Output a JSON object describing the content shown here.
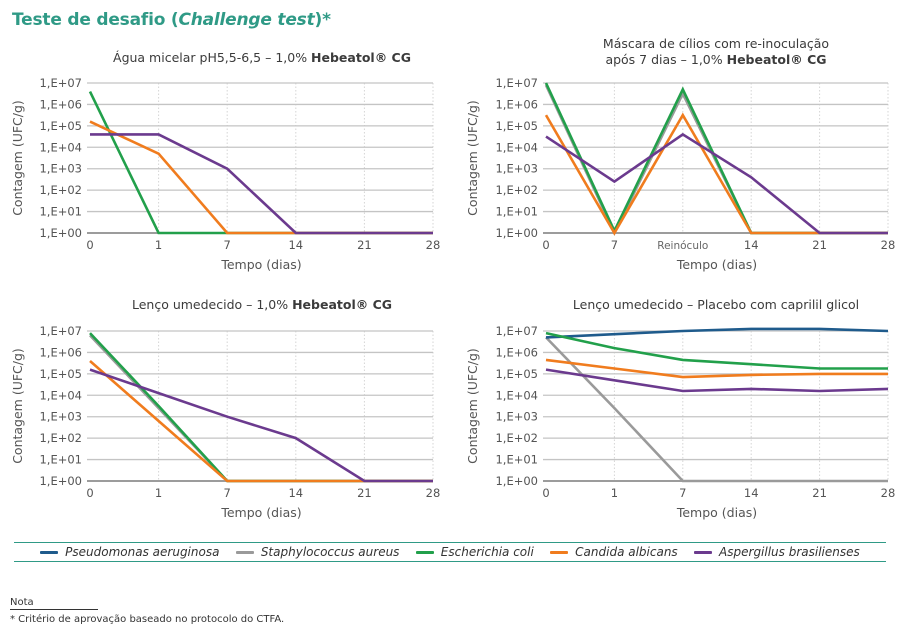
{
  "page": {
    "title_prefix": "Teste de desafio (",
    "title_italic": "Challenge test",
    "title_suffix": ")*"
  },
  "legend": [
    {
      "name": "Pseudomonas aeruginosa",
      "color": "#1f5b8c"
    },
    {
      "name": "Staphylococcus aureus",
      "color": "#9a9a9a"
    },
    {
      "name": "Escherichia coli",
      "color": "#22a04b"
    },
    {
      "name": "Candida albicans",
      "color": "#f07c1e"
    },
    {
      "name": "Aspergillus brasilienses",
      "color": "#6b3a8e"
    }
  ],
  "note": {
    "label": "Nota",
    "text": "* Critério de aprovação baseado no protocolo do CTFA."
  },
  "chart_data": [
    {
      "type": "line",
      "title_lines": [
        "Água micelar pH5,5-6,5  – 1,0% Hebeatol® CG"
      ],
      "xlabel": "Tempo (dias)",
      "ylabel": "Contagem (UFC/g)",
      "categories": [
        "0",
        "1",
        "7",
        "14",
        "21",
        "28"
      ],
      "y_scale": "log10",
      "ylim_exp": [
        0,
        7
      ],
      "y_ticks": [
        "1,E+00",
        "1,E+01",
        "1,E+02",
        "1,E+03",
        "1,E+04",
        "1,E+05",
        "1,E+06",
        "1,E+07"
      ],
      "grid": true,
      "series": [
        {
          "name": "Escherichia coli",
          "log_values": [
            6.6,
            0,
            0,
            0,
            0,
            0
          ]
        },
        {
          "name": "Candida albicans",
          "log_values": [
            5.2,
            3.7,
            0,
            0,
            0,
            0
          ]
        },
        {
          "name": "Aspergillus brasilienses",
          "log_values": [
            4.6,
            4.6,
            3.0,
            0,
            0,
            0
          ]
        }
      ]
    },
    {
      "type": "line",
      "title_lines": [
        "Máscara de cílios com re-inoculação",
        "após 7 dias – 1,0% Hebeatol® CG"
      ],
      "xlabel": "Tempo (dias)",
      "ylabel": "Contagem (UFC/g)",
      "categories": [
        "0",
        "7",
        "Reinóculo",
        "14",
        "21",
        "28"
      ],
      "y_scale": "log10",
      "ylim_exp": [
        0,
        7
      ],
      "y_ticks": [
        "1,E+00",
        "1,E+01",
        "1,E+02",
        "1,E+03",
        "1,E+04",
        "1,E+05",
        "1,E+06",
        "1,E+07"
      ],
      "grid": true,
      "series": [
        {
          "name": "Staphylococcus aureus",
          "log_values": [
            6.9,
            0,
            6.5,
            0,
            0,
            0
          ]
        },
        {
          "name": "Escherichia coli",
          "log_values": [
            7.0,
            0.1,
            6.7,
            0,
            0,
            0
          ]
        },
        {
          "name": "Candida albicans",
          "log_values": [
            5.5,
            0,
            5.5,
            0,
            0,
            0
          ]
        },
        {
          "name": "Aspergillus brasilienses",
          "log_values": [
            4.5,
            2.4,
            4.6,
            2.6,
            0,
            0
          ]
        }
      ]
    },
    {
      "type": "line",
      "title_lines": [
        "Lenço umedecido – 1,0% Hebeatol® CG"
      ],
      "xlabel": "Tempo (dias)",
      "ylabel": "Contagem (UFC/g)",
      "categories": [
        "0",
        "1",
        "7",
        "14",
        "21",
        "28"
      ],
      "y_scale": "log10",
      "ylim_exp": [
        0,
        7
      ],
      "y_ticks": [
        "1,E+00",
        "1,E+01",
        "1,E+02",
        "1,E+03",
        "1,E+04",
        "1,E+05",
        "1,E+06",
        "1,E+07"
      ],
      "grid": true,
      "series": [
        {
          "name": "Staphylococcus aureus",
          "log_values": [
            6.8,
            3.4,
            0,
            0,
            0,
            0
          ]
        },
        {
          "name": "Escherichia coli",
          "log_values": [
            6.9,
            3.5,
            0,
            0,
            0,
            0
          ]
        },
        {
          "name": "Candida albicans",
          "log_values": [
            5.6,
            2.8,
            0,
            0,
            0,
            0
          ]
        },
        {
          "name": "Aspergillus brasilienses",
          "log_values": [
            5.2,
            4.1,
            3.0,
            2.0,
            0,
            0
          ]
        }
      ]
    },
    {
      "type": "line",
      "title_lines": [
        "Lenço umedecido – Placebo com caprilil glicol"
      ],
      "xlabel": "Tempo (dias)",
      "ylabel": "Contagem (UFC/g)",
      "categories": [
        "0",
        "1",
        "7",
        "14",
        "21",
        "28"
      ],
      "y_scale": "log10",
      "ylim_exp": [
        0,
        7
      ],
      "y_ticks": [
        "1,E+00",
        "1,E+01",
        "1,E+02",
        "1,E+03",
        "1,E+04",
        "1,E+05",
        "1,E+06",
        "1,E+07"
      ],
      "grid": true,
      "series": [
        {
          "name": "Pseudomonas aeruginosa",
          "log_values": [
            6.7,
            6.85,
            7.0,
            7.1,
            7.1,
            7.0
          ]
        },
        {
          "name": "Staphylococcus aureus",
          "log_values": [
            6.7,
            3.4,
            0,
            0,
            0,
            0
          ]
        },
        {
          "name": "Escherichia coli",
          "log_values": [
            6.9,
            6.2,
            5.65,
            5.45,
            5.25,
            5.25
          ]
        },
        {
          "name": "Candida albicans",
          "log_values": [
            5.65,
            5.25,
            4.85,
            4.95,
            5.0,
            5.0
          ]
        },
        {
          "name": "Aspergillus brasilienses",
          "log_values": [
            5.2,
            4.7,
            4.2,
            4.3,
            4.2,
            4.3
          ]
        }
      ]
    }
  ]
}
